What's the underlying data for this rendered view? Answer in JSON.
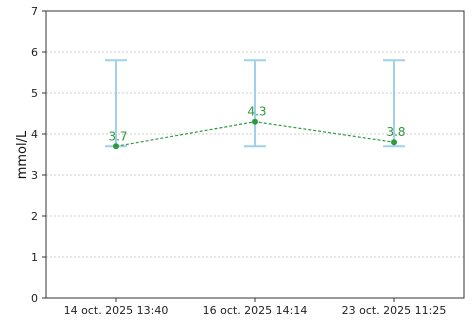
{
  "colors": {
    "series": "#2e9a3e",
    "range": "#9fd0ec",
    "grid": "#bfbfbf",
    "axis": "#333333"
  },
  "chart_data": {
    "type": "line",
    "title": "",
    "xlabel": "",
    "ylabel": "mmol/L",
    "ylim": [
      0,
      7
    ],
    "yticks": [
      0,
      1,
      2,
      3,
      4,
      5,
      6,
      7
    ],
    "grid": "horizontal, dotted",
    "categories": [
      "14 oct. 2025 13:40",
      "16 oct. 2025 14:14",
      "23 oct. 2025 11:25"
    ],
    "series": [
      {
        "values": [
          3.7,
          4.3,
          3.8
        ],
        "labels": [
          "3.7",
          "4.3",
          "3.8"
        ],
        "line_style": "dashed",
        "marker": "circle"
      }
    ],
    "reference_ranges": [
      {
        "low": 3.7,
        "high": 5.8
      },
      {
        "low": 3.7,
        "high": 5.8
      },
      {
        "low": 3.7,
        "high": 5.8
      }
    ]
  }
}
